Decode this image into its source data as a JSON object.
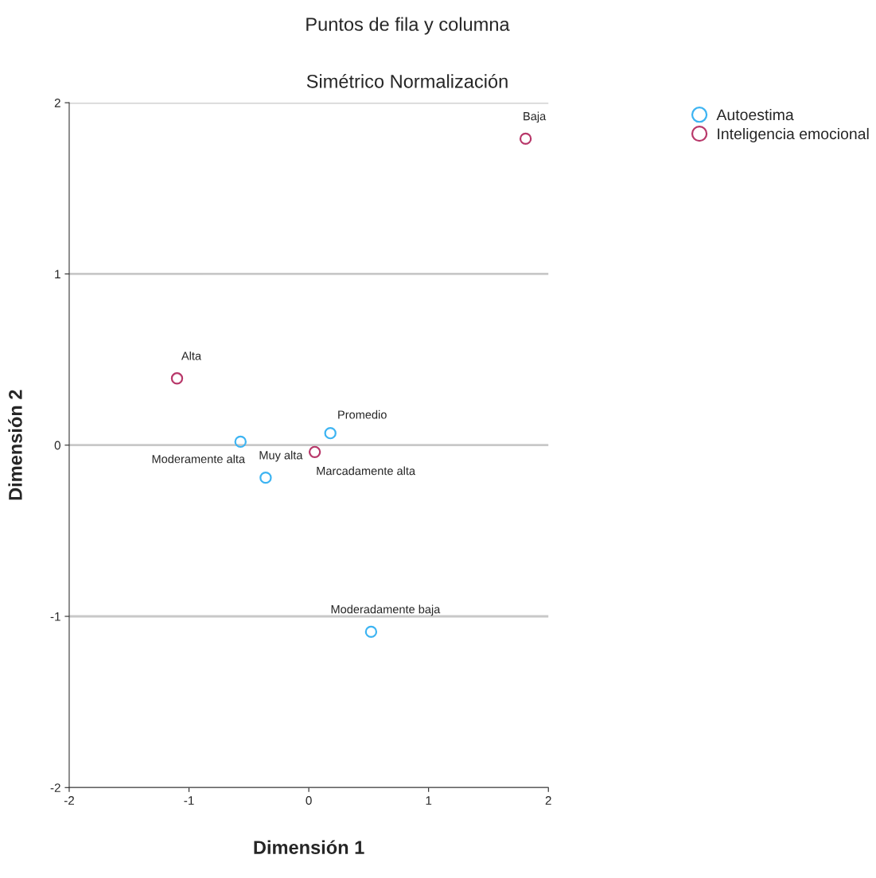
{
  "chart_data": {
    "type": "scatter",
    "title": "Puntos de fila y columna",
    "subtitle": "Simétrico Normalización",
    "xlabel": "Dimensión 1",
    "ylabel": "Dimensión 2",
    "xlim": [
      -2,
      2
    ],
    "ylim": [
      -2,
      2
    ],
    "xticks": [
      -2,
      -1,
      0,
      1,
      2
    ],
    "yticks": [
      -2,
      -1,
      0,
      1,
      2
    ],
    "grid": "y",
    "legend": "top right",
    "marker": "circle",
    "series": [
      {
        "name": "Autoestima",
        "color": "#3db4f2",
        "x": [
          -0.57,
          -0.36,
          0.18,
          0.52
        ],
        "values": [
          0.02,
          -0.19,
          0.07,
          -1.09
        ]
      },
      {
        "name": "Inteligencia emocional",
        "color": "#b8386a",
        "x": [
          1.81,
          -1.1,
          0.05
        ],
        "values": [
          1.79,
          0.39,
          -0.04
        ]
      }
    ],
    "annotations": [
      {
        "text": "Moderamente alta",
        "x": -0.57,
        "y": 0.02
      },
      {
        "text": "Muy alta",
        "x": -0.36,
        "y": -0.19
      },
      {
        "text": "Promedio",
        "x": 0.18,
        "y": 0.07
      },
      {
        "text": "Moderadamente baja",
        "x": 0.52,
        "y": -1.09
      },
      {
        "text": "Baja",
        "x": 1.81,
        "y": 1.79
      },
      {
        "text": "Alta",
        "x": -1.1,
        "y": 0.39
      },
      {
        "text": "Marcadamente alta",
        "x": 0.05,
        "y": -0.04
      }
    ]
  }
}
